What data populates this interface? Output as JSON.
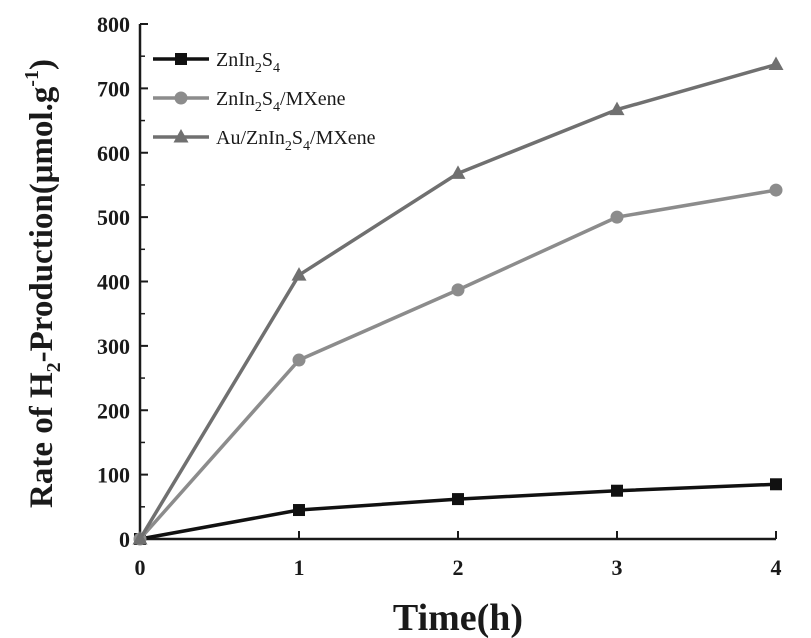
{
  "chart_data": {
    "type": "line",
    "title": "",
    "xlabel": "Time(h)",
    "ylabel": {
      "main": "Rate of H",
      "sub": "2",
      "rest": "-Production(μmol.g",
      "sup": "-1",
      "close": ")"
    },
    "x": [
      0,
      1,
      2,
      3,
      4
    ],
    "xlim": [
      0,
      4
    ],
    "ylim": [
      0,
      800
    ],
    "xticks": [
      "0",
      "1",
      "2",
      "3",
      "4"
    ],
    "yticks": [
      "0",
      "100",
      "200",
      "300",
      "400",
      "500",
      "600",
      "700",
      "800"
    ],
    "grid": false,
    "legend_position": "top-left",
    "series": [
      {
        "name": "ZnIn2S4",
        "legend_parts": [
          [
            "ZnIn",
            false
          ],
          [
            "2",
            true
          ],
          [
            "S",
            false
          ],
          [
            "4",
            true
          ]
        ],
        "marker": "square",
        "color": "#111111",
        "values": [
          0,
          45,
          62,
          75,
          85
        ]
      },
      {
        "name": "ZnIn2S4/MXene",
        "legend_parts": [
          [
            "ZnIn",
            false
          ],
          [
            "2",
            true
          ],
          [
            "S",
            false
          ],
          [
            "4",
            true
          ],
          [
            "/MXene",
            false
          ]
        ],
        "marker": "circle",
        "color": "#8c8c8c",
        "values": [
          0,
          278,
          387,
          500,
          542
        ]
      },
      {
        "name": "Au/ZnIn2S4/MXene",
        "legend_parts": [
          [
            "Au/ZnIn",
            false
          ],
          [
            "2",
            true
          ],
          [
            "S",
            false
          ],
          [
            "4",
            true
          ],
          [
            "/MXene",
            false
          ]
        ],
        "marker": "triangle",
        "color": "#707070",
        "values": [
          0,
          410,
          568,
          667,
          737
        ]
      }
    ]
  }
}
